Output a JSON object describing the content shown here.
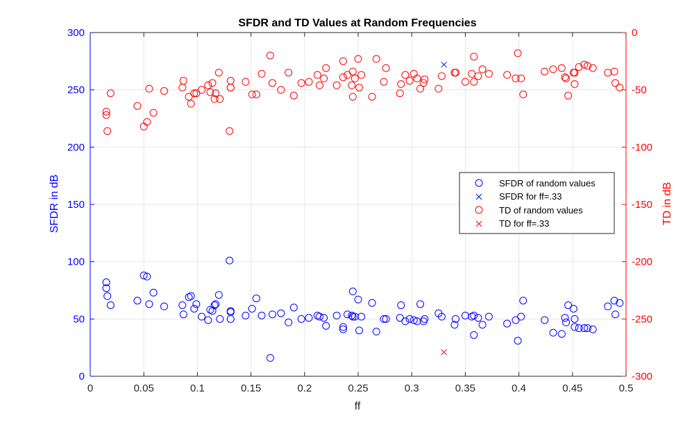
{
  "chart_data": {
    "type": "scatter",
    "title": "SFDR and TD Values at Random Frequencies",
    "xlabel": "ff",
    "ylabel_left": "SFDR in dB",
    "ylabel_right": "TD in dB",
    "xlim": [
      0,
      0.5
    ],
    "ylim_left": [
      0,
      300
    ],
    "ylim_right": [
      -300,
      0
    ],
    "grid": true,
    "legend_position": "right",
    "x_ticks": [
      "0",
      "0.05",
      "0.1",
      "0.15",
      "0.2",
      "0.25",
      "0.3",
      "0.35",
      "0.4",
      "0.45",
      "0.5"
    ],
    "y_left_ticks": [
      "0",
      "50",
      "100",
      "150",
      "200",
      "250",
      "300"
    ],
    "y_right_ticks": [
      "-300",
      "-250",
      "-200",
      "-150",
      "-100",
      "-50",
      "0"
    ],
    "colors": {
      "left": "#0000ff",
      "right": "#ff0000",
      "grid": "#e6e6e6",
      "axis": "#262626"
    },
    "series": [
      {
        "name": "SFDR of random values",
        "axis": "left",
        "marker": "circle",
        "color": "#0000ff",
        "points": [
          [
            0.015,
            82
          ],
          [
            0.015,
            77
          ],
          [
            0.016,
            70
          ],
          [
            0.019,
            62
          ],
          [
            0.044,
            66
          ],
          [
            0.05,
            88
          ],
          [
            0.053,
            87
          ],
          [
            0.055,
            63
          ],
          [
            0.059,
            73
          ],
          [
            0.069,
            61
          ],
          [
            0.086,
            62
          ],
          [
            0.087,
            54
          ],
          [
            0.092,
            69
          ],
          [
            0.094,
            70
          ],
          [
            0.097,
            59
          ],
          [
            0.099,
            63
          ],
          [
            0.104,
            52
          ],
          [
            0.11,
            49
          ],
          [
            0.112,
            58
          ],
          [
            0.114,
            57
          ],
          [
            0.116,
            62
          ],
          [
            0.117,
            63
          ],
          [
            0.12,
            71
          ],
          [
            0.121,
            50
          ],
          [
            0.13,
            101
          ],
          [
            0.131,
            57
          ],
          [
            0.131,
            56
          ],
          [
            0.131,
            50
          ],
          [
            0.145,
            53
          ],
          [
            0.151,
            59
          ],
          [
            0.155,
            68
          ],
          [
            0.16,
            53
          ],
          [
            0.168,
            16
          ],
          [
            0.17,
            54
          ],
          [
            0.178,
            55
          ],
          [
            0.185,
            47
          ],
          [
            0.19,
            60
          ],
          [
            0.197,
            50
          ],
          [
            0.204,
            51
          ],
          [
            0.212,
            53
          ],
          [
            0.214,
            52
          ],
          [
            0.218,
            51
          ],
          [
            0.22,
            44
          ],
          [
            0.23,
            53
          ],
          [
            0.236,
            43
          ],
          [
            0.236,
            41
          ],
          [
            0.24,
            54
          ],
          [
            0.244,
            53
          ],
          [
            0.245,
            74
          ],
          [
            0.245,
            52
          ],
          [
            0.247,
            52
          ],
          [
            0.25,
            67
          ],
          [
            0.251,
            40
          ],
          [
            0.253,
            52
          ],
          [
            0.263,
            64
          ],
          [
            0.267,
            39
          ],
          [
            0.274,
            50
          ],
          [
            0.276,
            50
          ],
          [
            0.289,
            51
          ],
          [
            0.29,
            62
          ],
          [
            0.294,
            48
          ],
          [
            0.298,
            50
          ],
          [
            0.302,
            49
          ],
          [
            0.305,
            48
          ],
          [
            0.308,
            63
          ],
          [
            0.311,
            48
          ],
          [
            0.312,
            50
          ],
          [
            0.325,
            55
          ],
          [
            0.328,
            52
          ],
          [
            0.34,
            45
          ],
          [
            0.341,
            50
          ],
          [
            0.35,
            53
          ],
          [
            0.356,
            52
          ],
          [
            0.358,
            36
          ],
          [
            0.358,
            53
          ],
          [
            0.362,
            51
          ],
          [
            0.366,
            45
          ],
          [
            0.372,
            52
          ],
          [
            0.389,
            46
          ],
          [
            0.397,
            49
          ],
          [
            0.399,
            31
          ],
          [
            0.402,
            52
          ],
          [
            0.404,
            66
          ],
          [
            0.424,
            49
          ],
          [
            0.432,
            38
          ],
          [
            0.44,
            37
          ],
          [
            0.443,
            51
          ],
          [
            0.444,
            47
          ],
          [
            0.446,
            62
          ],
          [
            0.451,
            59
          ],
          [
            0.452,
            50
          ],
          [
            0.452,
            43
          ],
          [
            0.456,
            42
          ],
          [
            0.461,
            42
          ],
          [
            0.464,
            42
          ],
          [
            0.469,
            41
          ],
          [
            0.483,
            61
          ],
          [
            0.489,
            66
          ],
          [
            0.49,
            54
          ],
          [
            0.494,
            64
          ]
        ]
      },
      {
        "name": "SFDR for ff=.33",
        "axis": "left",
        "marker": "x",
        "color": "#0000ff",
        "points": [
          [
            0.33,
            272
          ]
        ]
      },
      {
        "name": "TD of random values",
        "axis": "right",
        "marker": "circle",
        "color": "#ff0000",
        "points": [
          [
            0.015,
            -69
          ],
          [
            0.015,
            -72
          ],
          [
            0.016,
            -86
          ],
          [
            0.019,
            -53
          ],
          [
            0.044,
            -64
          ],
          [
            0.05,
            -82
          ],
          [
            0.053,
            -78
          ],
          [
            0.055,
            -49
          ],
          [
            0.059,
            -70
          ],
          [
            0.069,
            -51
          ],
          [
            0.086,
            -48
          ],
          [
            0.087,
            -42
          ],
          [
            0.092,
            -56
          ],
          [
            0.094,
            -62
          ],
          [
            0.097,
            -53
          ],
          [
            0.099,
            -53
          ],
          [
            0.104,
            -50
          ],
          [
            0.11,
            -46
          ],
          [
            0.112,
            -52
          ],
          [
            0.114,
            -44
          ],
          [
            0.116,
            -58
          ],
          [
            0.117,
            -53
          ],
          [
            0.12,
            -35
          ],
          [
            0.121,
            -58
          ],
          [
            0.13,
            -86
          ],
          [
            0.131,
            -48
          ],
          [
            0.131,
            -42
          ],
          [
            0.131,
            -48
          ],
          [
            0.145,
            -43
          ],
          [
            0.151,
            -54
          ],
          [
            0.155,
            -54
          ],
          [
            0.16,
            -36
          ],
          [
            0.168,
            -20
          ],
          [
            0.17,
            -44
          ],
          [
            0.178,
            -50
          ],
          [
            0.185,
            -35
          ],
          [
            0.19,
            -55
          ],
          [
            0.197,
            -44
          ],
          [
            0.204,
            -43
          ],
          [
            0.212,
            -37
          ],
          [
            0.214,
            -46
          ],
          [
            0.218,
            -40
          ],
          [
            0.22,
            -31
          ],
          [
            0.23,
            -46
          ],
          [
            0.236,
            -39
          ],
          [
            0.236,
            -25
          ],
          [
            0.24,
            -37
          ],
          [
            0.244,
            -46
          ],
          [
            0.245,
            -56
          ],
          [
            0.245,
            -34
          ],
          [
            0.247,
            -40
          ],
          [
            0.25,
            -23
          ],
          [
            0.251,
            -48
          ],
          [
            0.253,
            -37
          ],
          [
            0.263,
            -56
          ],
          [
            0.267,
            -23
          ],
          [
            0.274,
            -43
          ],
          [
            0.276,
            -31
          ],
          [
            0.289,
            -53
          ],
          [
            0.29,
            -45
          ],
          [
            0.294,
            -37
          ],
          [
            0.298,
            -42
          ],
          [
            0.302,
            -36
          ],
          [
            0.305,
            -40
          ],
          [
            0.308,
            -49
          ],
          [
            0.311,
            -44
          ],
          [
            0.312,
            -41
          ],
          [
            0.325,
            -49
          ],
          [
            0.328,
            -38
          ],
          [
            0.34,
            -35
          ],
          [
            0.341,
            -35
          ],
          [
            0.35,
            -43
          ],
          [
            0.356,
            -36
          ],
          [
            0.358,
            -43
          ],
          [
            0.358,
            -21
          ],
          [
            0.362,
            -38
          ],
          [
            0.366,
            -32
          ],
          [
            0.372,
            -36
          ],
          [
            0.389,
            -37
          ],
          [
            0.397,
            -40
          ],
          [
            0.399,
            -18
          ],
          [
            0.402,
            -40
          ],
          [
            0.404,
            -54
          ],
          [
            0.424,
            -34
          ],
          [
            0.432,
            -32
          ],
          [
            0.44,
            -31
          ],
          [
            0.443,
            -39
          ],
          [
            0.444,
            -40
          ],
          [
            0.446,
            -55
          ],
          [
            0.451,
            -35
          ],
          [
            0.452,
            -35
          ],
          [
            0.452,
            -45
          ],
          [
            0.456,
            -30
          ],
          [
            0.461,
            -28
          ],
          [
            0.464,
            -29
          ],
          [
            0.469,
            -31
          ],
          [
            0.483,
            -35
          ],
          [
            0.489,
            -34
          ],
          [
            0.49,
            -44
          ],
          [
            0.494,
            -48
          ]
        ]
      },
      {
        "name": "TD for ff=.33",
        "axis": "right",
        "marker": "x",
        "color": "#ff0000",
        "points": [
          [
            0.33,
            -279
          ]
        ]
      }
    ]
  }
}
